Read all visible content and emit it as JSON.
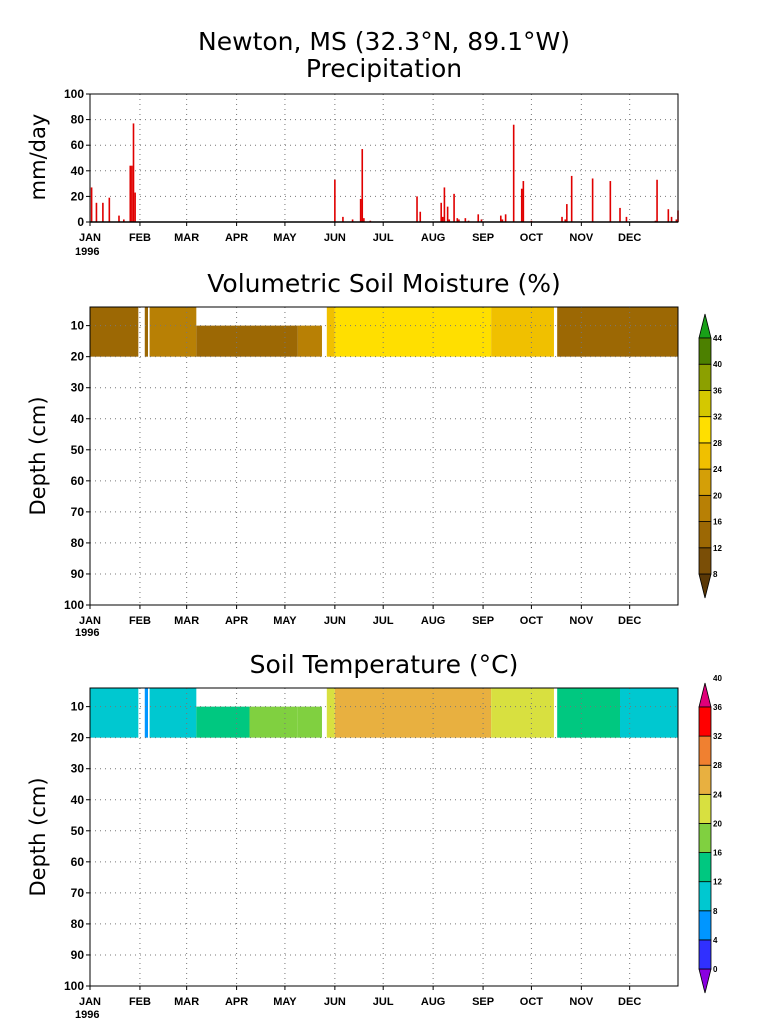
{
  "page": {
    "title": "Newton, MS  (32.3°N, 89.1°W)",
    "months": [
      "JAN",
      "FEB",
      "MAR",
      "APR",
      "MAY",
      "JUN",
      "JUL",
      "AUG",
      "SEP",
      "OCT",
      "NOV",
      "DEC"
    ],
    "year_label": "1996"
  },
  "colors": {
    "precip_bar": "#e00000",
    "moisture_colors": [
      "#5a3806",
      "#7a4e06",
      "#9c6804",
      "#b88005",
      "#d49f07",
      "#f0c000",
      "#ffdf00",
      "#d4c800",
      "#8ca000",
      "#4c8000",
      "#18a018"
    ],
    "temperature_colors": [
      "#8a00e0",
      "#3030ff",
      "#0096ff",
      "#00c8d0",
      "#00c880",
      "#80d040",
      "#d8e040",
      "#e8b040",
      "#f08030",
      "#ff0000",
      "#e0007a"
    ]
  },
  "chart_data": [
    {
      "type": "bar",
      "title": "Precipitation",
      "ylabel": "mm/day",
      "ylim": [
        0,
        100
      ],
      "yticks": [
        0,
        20,
        40,
        60,
        80,
        100
      ],
      "x_unit": "day_of_year_1996",
      "xlim": [
        1,
        366
      ],
      "grid": true,
      "x": [
        2,
        5,
        9,
        13,
        19,
        22,
        26,
        27,
        28,
        29,
        153,
        158,
        164,
        169,
        170,
        171,
        175,
        204,
        206,
        219,
        220,
        221,
        223,
        224,
        227,
        229,
        230,
        234,
        236,
        242,
        244,
        256,
        257,
        259,
        264,
        269,
        270,
        275,
        294,
        296,
        297,
        300,
        313,
        324,
        330,
        334,
        352,
        353,
        360,
        362,
        365,
        366
      ],
      "values": [
        27,
        15,
        15,
        19,
        5,
        2,
        44,
        44,
        77,
        23,
        33,
        4,
        2,
        18,
        57,
        3,
        1,
        20,
        8,
        15,
        4,
        27,
        12,
        2,
        22,
        3,
        2,
        3,
        1,
        6,
        2,
        5,
        2,
        6,
        76,
        26,
        32,
        1,
        4,
        2,
        14,
        36,
        34,
        32,
        11,
        4,
        1,
        33,
        10,
        4,
        2,
        9
      ]
    },
    {
      "type": "heatmap",
      "title": "Volumetric Soil Moisture (%)",
      "ylabel": "Depth (cm)",
      "ylim": [
        100,
        4
      ],
      "yticks": [
        10,
        20,
        30,
        40,
        50,
        60,
        70,
        80,
        90,
        100
      ],
      "x_unit": "day_of_year_1996",
      "grid": true,
      "colorbar_ticks": [
        8,
        12,
        16,
        20,
        24,
        28,
        32,
        36,
        40,
        44
      ],
      "layers": [
        {
          "depth_top": 4,
          "depth_bottom": 20,
          "segments": [
            {
              "start": 1,
              "end": 31,
              "value": 12
            },
            {
              "start": 35,
              "end": 37,
              "value": 12
            },
            {
              "start": 38,
              "end": 67,
              "value": 16
            },
            {
              "start": 148,
              "end": 153,
              "value": 24
            },
            {
              "start": 153,
              "end": 250,
              "value": 28
            },
            {
              "start": 250,
              "end": 289,
              "value": 24
            },
            {
              "start": 291,
              "end": 366,
              "value": 12
            }
          ]
        },
        {
          "depth_top": 10,
          "depth_bottom": 20,
          "segments": [
            {
              "start": 67,
              "end": 130,
              "value": 12
            },
            {
              "start": 130,
              "end": 145,
              "value": 16
            }
          ]
        }
      ]
    },
    {
      "type": "heatmap",
      "title": "Soil Temperature (°C)",
      "ylabel": "Depth (cm)",
      "ylim": [
        100,
        4
      ],
      "yticks": [
        10,
        20,
        30,
        40,
        50,
        60,
        70,
        80,
        90,
        100
      ],
      "x_unit": "day_of_year_1996",
      "grid": true,
      "colorbar_ticks": [
        0,
        4,
        8,
        12,
        16,
        20,
        24,
        28,
        32,
        36,
        40
      ],
      "layers": [
        {
          "depth_top": 4,
          "depth_bottom": 20,
          "segments": [
            {
              "start": 1,
              "end": 31,
              "value": 9
            },
            {
              "start": 35,
              "end": 37,
              "value": 5
            },
            {
              "start": 38,
              "end": 67,
              "value": 11
            },
            {
              "start": 148,
              "end": 153,
              "value": 20
            },
            {
              "start": 153,
              "end": 250,
              "value": 26
            },
            {
              "start": 250,
              "end": 289,
              "value": 21
            },
            {
              "start": 291,
              "end": 330,
              "value": 15
            },
            {
              "start": 330,
              "end": 366,
              "value": 11
            }
          ]
        },
        {
          "depth_top": 10,
          "depth_bottom": 20,
          "segments": [
            {
              "start": 67,
              "end": 100,
              "value": 13
            },
            {
              "start": 100,
              "end": 130,
              "value": 16
            },
            {
              "start": 130,
              "end": 145,
              "value": 18
            }
          ]
        }
      ]
    }
  ]
}
